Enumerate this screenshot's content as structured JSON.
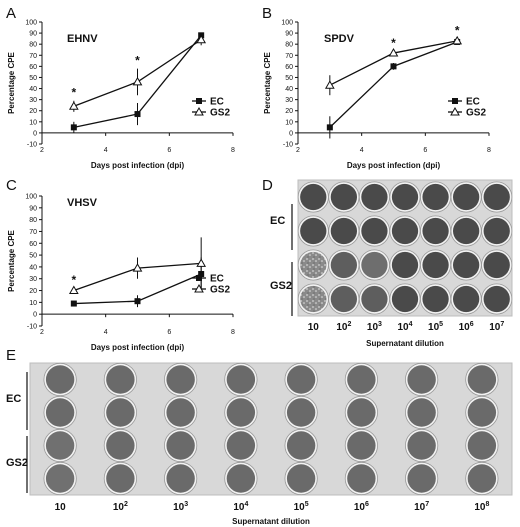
{
  "chart_data": [
    {
      "type": "line",
      "panel": "A",
      "title": "EHNV",
      "xlabel": "Days post infection (dpi)",
      "ylabel": "Percentage CPE",
      "xlim": [
        2,
        8
      ],
      "ylim": [
        -10,
        100
      ],
      "xticks": [
        2,
        4,
        6,
        8
      ],
      "yticks": [
        -10,
        0,
        10,
        20,
        30,
        40,
        50,
        60,
        70,
        80,
        90,
        100
      ],
      "x": [
        3,
        5,
        7
      ],
      "series": [
        {
          "name": "EC",
          "marker": "square",
          "values": [
            5,
            17,
            88
          ],
          "errors": [
            5,
            10,
            2
          ]
        },
        {
          "name": "GS2",
          "marker": "triangle",
          "values": [
            24,
            46,
            84
          ],
          "errors": [
            5,
            12,
            5
          ]
        }
      ],
      "significance_marks": [
        "*",
        "*",
        ""
      ],
      "legend": "right"
    },
    {
      "type": "line",
      "panel": "B",
      "title": "SPDV",
      "xlabel": "Days post infection (dpi)",
      "ylabel": "Percentage CPE",
      "xlim": [
        2,
        8
      ],
      "ylim": [
        -10,
        100
      ],
      "xticks": [
        2,
        4,
        6,
        8
      ],
      "yticks": [
        -10,
        0,
        10,
        20,
        30,
        40,
        50,
        60,
        70,
        80,
        90,
        100
      ],
      "x": [
        3,
        5,
        7
      ],
      "series": [
        {
          "name": "EC",
          "marker": "square",
          "values": [
            5,
            60,
            82
          ],
          "errors": [
            10,
            3,
            2
          ]
        },
        {
          "name": "GS2",
          "marker": "triangle",
          "values": [
            43,
            72,
            83
          ],
          "errors": [
            9,
            2,
            2
          ]
        }
      ],
      "significance_marks": [
        "",
        "*",
        "*"
      ],
      "legend": "right"
    },
    {
      "type": "line",
      "panel": "C",
      "title": "VHSV",
      "xlabel": "Days post infection (dpi)",
      "ylabel": "Percentage CPE",
      "xlim": [
        2,
        8
      ],
      "ylim": [
        -10,
        100
      ],
      "xticks": [
        2,
        4,
        6,
        8
      ],
      "yticks": [
        -10,
        0,
        10,
        20,
        30,
        40,
        50,
        60,
        70,
        80,
        90,
        100
      ],
      "x": [
        3,
        5,
        7
      ],
      "series": [
        {
          "name": "EC",
          "marker": "square",
          "values": [
            9,
            11,
            34
          ],
          "errors": [
            2,
            5,
            14
          ]
        },
        {
          "name": "GS2",
          "marker": "triangle",
          "values": [
            20,
            39,
            43
          ],
          "errors": [
            2,
            9,
            22
          ]
        }
      ],
      "significance_marks": [
        "*",
        "",
        ""
      ],
      "legend": "right"
    }
  ],
  "plates": [
    {
      "panel": "D",
      "xlabel": "Supernatant dilution",
      "row_groups": [
        "EC",
        "GS2"
      ],
      "columns": [
        {
          "base": "10",
          "exp": ""
        },
        {
          "base": "10",
          "exp": "2"
        },
        {
          "base": "10",
          "exp": "3"
        },
        {
          "base": "10",
          "exp": "4"
        },
        {
          "base": "10",
          "exp": "5"
        },
        {
          "base": "10",
          "exp": "6"
        },
        {
          "base": "10",
          "exp": "7"
        }
      ]
    },
    {
      "panel": "E",
      "xlabel": "Supernatant dilution",
      "row_groups": [
        "EC",
        "GS2"
      ],
      "columns": [
        {
          "base": "10",
          "exp": ""
        },
        {
          "base": "10",
          "exp": "2"
        },
        {
          "base": "10",
          "exp": "3"
        },
        {
          "base": "10",
          "exp": "4"
        },
        {
          "base": "10",
          "exp": "5"
        },
        {
          "base": "10",
          "exp": "6"
        },
        {
          "base": "10",
          "exp": "7"
        },
        {
          "base": "10",
          "exp": "8"
        }
      ]
    }
  ]
}
